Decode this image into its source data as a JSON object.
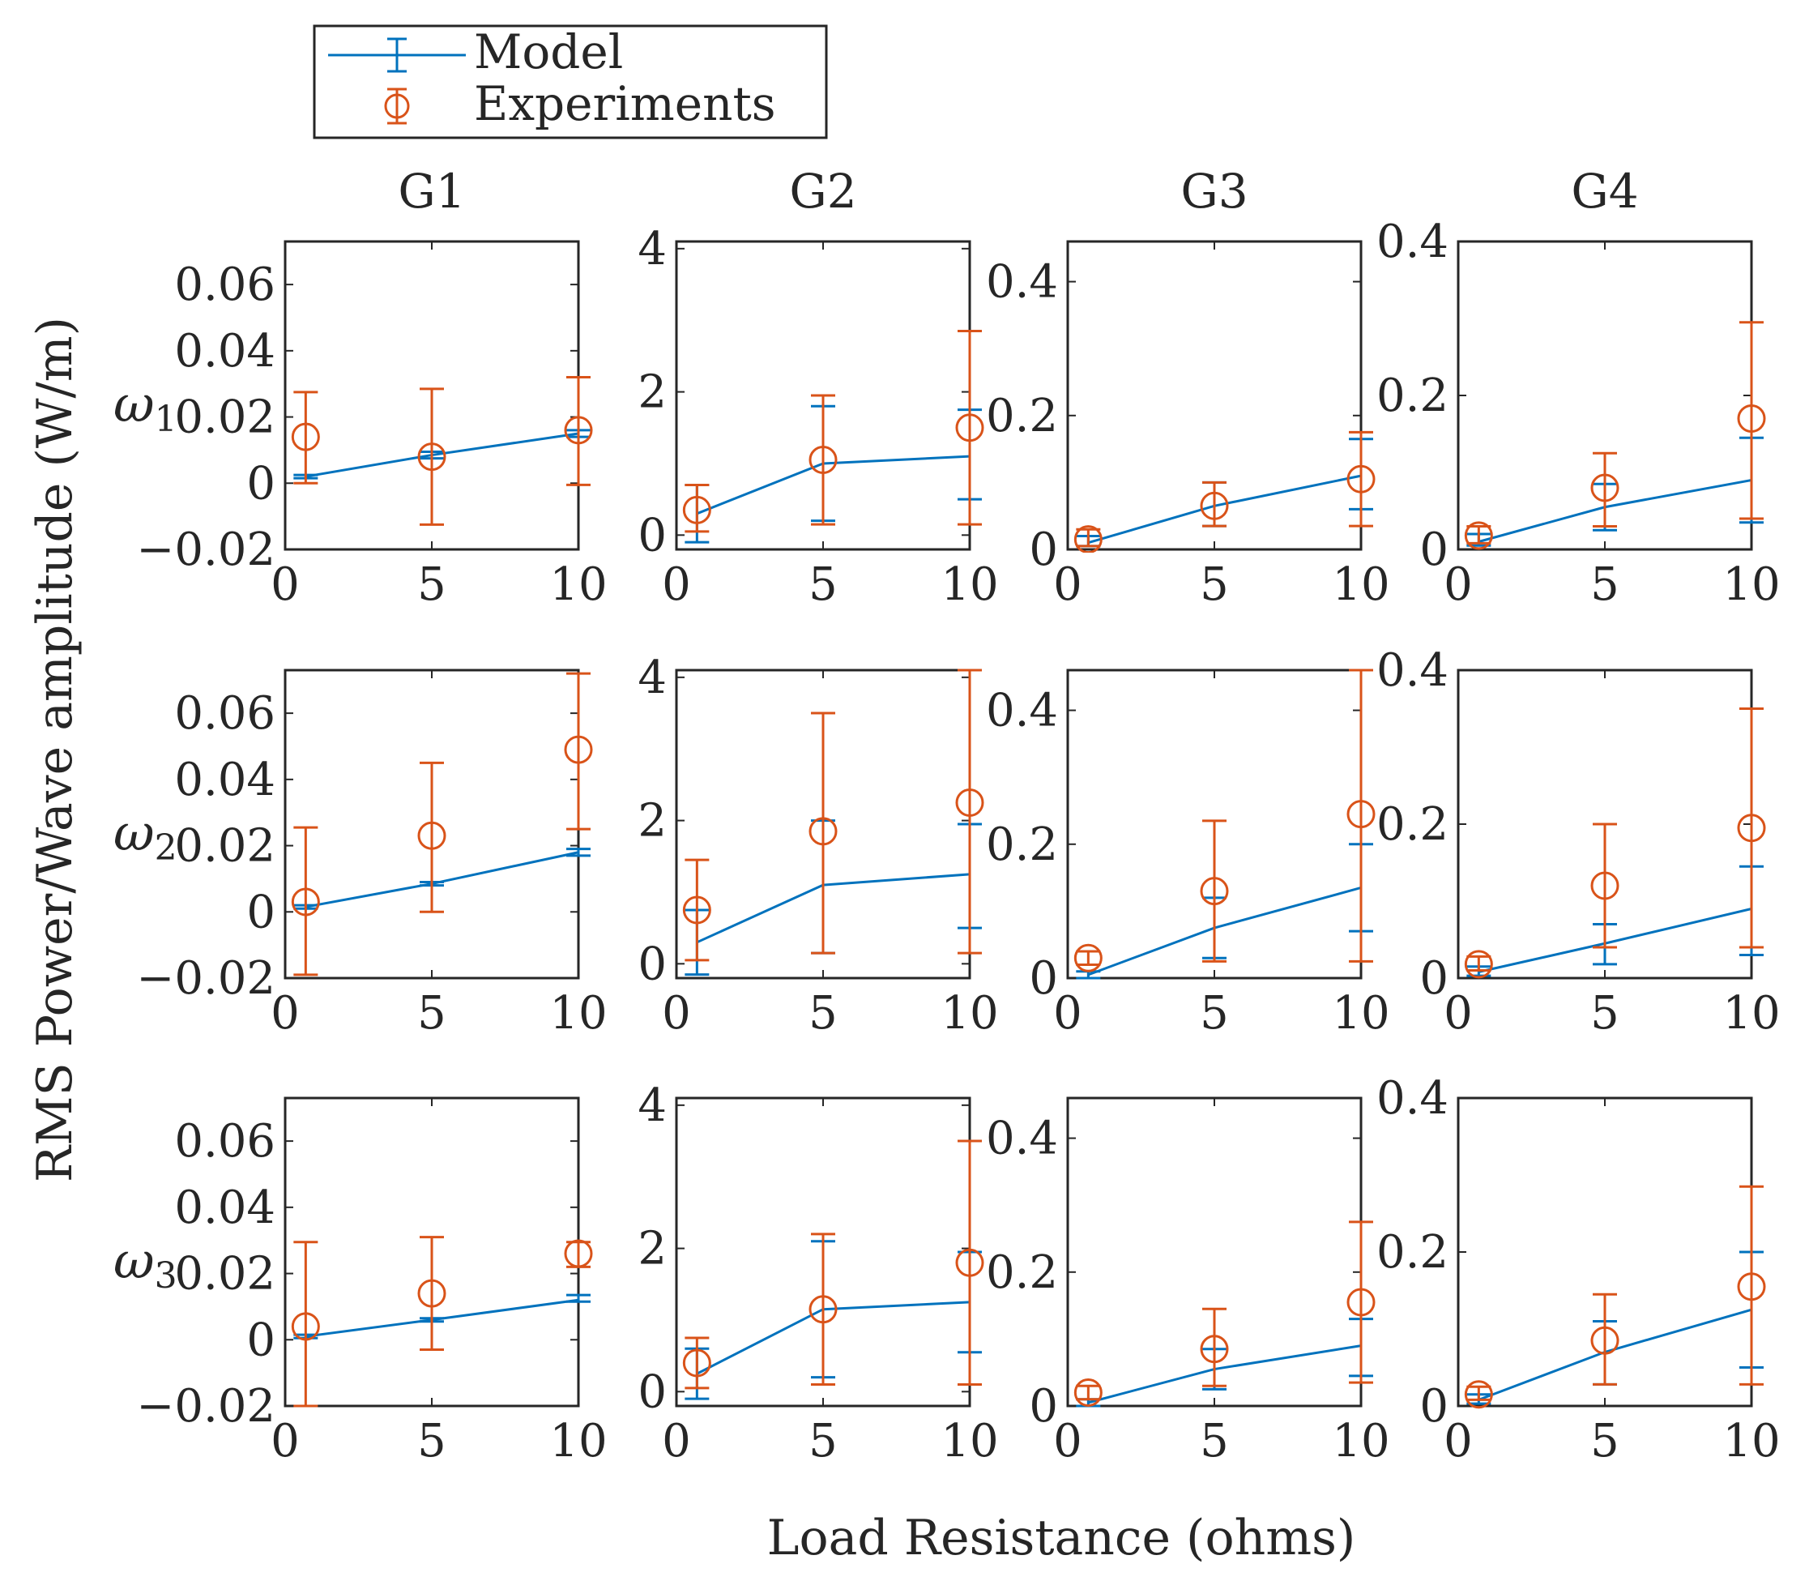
{
  "figure": {
    "ylabel": "RMS Power/Wave amplitude (W/m)",
    "xlabel": "Load Resistance (ohms)",
    "legend": {
      "placement": "top-left",
      "entries": [
        {
          "label": "Model",
          "color": "#0072BD",
          "marker": "errorbar-line"
        },
        {
          "label": "Experiments",
          "color": "#D95319",
          "marker": "circle-errorbar"
        }
      ]
    },
    "colors": {
      "model": "#0072BD",
      "experiments": "#D95319",
      "axes": "#262626"
    }
  },
  "chart_data": [
    {
      "type": "line",
      "group": "G1",
      "frequency": "ω₁",
      "col_title": "G1",
      "row_label_base": "ω",
      "row_label_sub": "1",
      "xlim": [
        0,
        10
      ],
      "ylim": [
        -0.02,
        0.073
      ],
      "xticks": [
        0,
        5,
        10
      ],
      "xtick_labels": [
        "0",
        "5",
        "10"
      ],
      "yticks": [
        -0.02,
        0,
        0.02,
        0.04,
        0.06
      ],
      "ytick_labels": [
        "−0.02",
        "0",
        "0.02",
        "0.04",
        "0.06"
      ],
      "x": [
        0.7,
        5,
        10
      ],
      "model": {
        "y": [
          0.002,
          0.0085,
          0.015
        ],
        "lower": [
          0.0015,
          0.0075,
          0.014
        ],
        "upper": [
          0.0025,
          0.0095,
          0.016
        ]
      },
      "experiments": {
        "y": [
          0.014,
          0.008,
          0.016
        ],
        "lower": [
          0,
          -0.0125,
          -0.0005
        ],
        "upper": [
          0.0275,
          0.0285,
          0.032
        ]
      }
    },
    {
      "type": "line",
      "group": "G2",
      "frequency": "ω₁",
      "col_title": "G2",
      "row_label_base": "",
      "row_label_sub": "",
      "xlim": [
        0,
        10
      ],
      "ylim": [
        -0.2,
        4.1
      ],
      "xticks": [
        0,
        5,
        10
      ],
      "xtick_labels": [
        "0",
        "5",
        "10"
      ],
      "yticks": [
        0,
        2,
        4
      ],
      "ytick_labels": [
        "0",
        "2",
        "4"
      ],
      "x": [
        0.7,
        5,
        10
      ],
      "model": {
        "y": [
          0.3,
          1.0,
          1.1
        ],
        "lower": [
          -0.1,
          0.2,
          0.5
        ],
        "upper": [
          0.7,
          1.8,
          1.75
        ]
      },
      "experiments": {
        "y": [
          0.35,
          1.05,
          1.5
        ],
        "lower": [
          0.05,
          0.15,
          0.15
        ],
        "upper": [
          0.7,
          1.95,
          2.85
        ]
      }
    },
    {
      "type": "line",
      "group": "G3",
      "frequency": "ω₁",
      "col_title": "G3",
      "row_label_base": "",
      "row_label_sub": "",
      "xlim": [
        0,
        10
      ],
      "ylim": [
        0,
        0.46
      ],
      "xticks": [
        0,
        5,
        10
      ],
      "xtick_labels": [
        "0",
        "5",
        "10"
      ],
      "yticks": [
        0,
        0.2,
        0.4
      ],
      "ytick_labels": [
        "0",
        "0.2",
        "0.4"
      ],
      "x": [
        0.7,
        5,
        10
      ],
      "model": {
        "y": [
          0.01,
          0.065,
          0.11
        ],
        "lower": [
          0.005,
          0.035,
          0.06
        ],
        "upper": [
          0.02,
          0.1,
          0.165
        ]
      },
      "experiments": {
        "y": [
          0.015,
          0.065,
          0.105
        ],
        "lower": [
          0.005,
          0.035,
          0.035
        ],
        "upper": [
          0.03,
          0.1,
          0.175
        ]
      }
    },
    {
      "type": "line",
      "group": "G4",
      "frequency": "ω₁",
      "col_title": "G4",
      "row_label_base": "",
      "row_label_sub": "",
      "xlim": [
        0,
        10
      ],
      "ylim": [
        0,
        0.4
      ],
      "xticks": [
        0,
        5,
        10
      ],
      "xtick_labels": [
        "0",
        "5",
        "10"
      ],
      "yticks": [
        0,
        0.2,
        0.4
      ],
      "ytick_labels": [
        "0",
        "0.2",
        "0.4"
      ],
      "x": [
        0.7,
        5,
        10
      ],
      "model": {
        "y": [
          0.01,
          0.055,
          0.09
        ],
        "lower": [
          0.005,
          0.025,
          0.035
        ],
        "upper": [
          0.02,
          0.085,
          0.145
        ]
      },
      "experiments": {
        "y": [
          0.018,
          0.08,
          0.17
        ],
        "lower": [
          0.008,
          0.03,
          0.04
        ],
        "upper": [
          0.03,
          0.125,
          0.295
        ]
      }
    },
    {
      "type": "line",
      "group": "G1",
      "frequency": "ω₂",
      "col_title": "",
      "row_label_base": "ω",
      "row_label_sub": "2",
      "xlim": [
        0,
        10
      ],
      "ylim": [
        -0.02,
        0.073
      ],
      "xticks": [
        0,
        5,
        10
      ],
      "xtick_labels": [
        "0",
        "5",
        "10"
      ],
      "yticks": [
        -0.02,
        0,
        0.02,
        0.04,
        0.06
      ],
      "ytick_labels": [
        "−0.02",
        "0",
        "0.02",
        "0.04",
        "0.06"
      ],
      "x": [
        0.7,
        5,
        10
      ],
      "model": {
        "y": [
          0.0015,
          0.0085,
          0.018
        ],
        "lower": [
          0.001,
          0.008,
          0.017
        ],
        "upper": [
          0.002,
          0.009,
          0.019
        ]
      },
      "experiments": {
        "y": [
          0.003,
          0.023,
          0.049
        ],
        "lower": [
          -0.019,
          0,
          0.025
        ],
        "upper": [
          0.0255,
          0.045,
          0.072
        ]
      }
    },
    {
      "type": "line",
      "group": "G2",
      "frequency": "ω₂",
      "col_title": "",
      "row_label_base": "",
      "row_label_sub": "",
      "xlim": [
        0,
        10
      ],
      "ylim": [
        -0.2,
        4.1
      ],
      "xticks": [
        0,
        5,
        10
      ],
      "xtick_labels": [
        "0",
        "5",
        "10"
      ],
      "yticks": [
        0,
        2,
        4
      ],
      "ytick_labels": [
        "0",
        "2",
        "4"
      ],
      "x": [
        0.7,
        5,
        10
      ],
      "model": {
        "y": [
          0.3,
          1.1,
          1.25
        ],
        "lower": [
          -0.15,
          0.15,
          0.5
        ],
        "upper": [
          0.75,
          2.0,
          1.95
        ]
      },
      "experiments": {
        "y": [
          0.75,
          1.85,
          2.25
        ],
        "lower": [
          0.05,
          0.15,
          0.15
        ],
        "upper": [
          1.45,
          3.5,
          4.1
        ]
      }
    },
    {
      "type": "line",
      "group": "G3",
      "frequency": "ω₂",
      "col_title": "",
      "row_label_base": "",
      "row_label_sub": "",
      "xlim": [
        0,
        10
      ],
      "ylim": [
        0,
        0.46
      ],
      "xticks": [
        0,
        5,
        10
      ],
      "xtick_labels": [
        "0",
        "5",
        "10"
      ],
      "yticks": [
        0,
        0.2,
        0.4
      ],
      "ytick_labels": [
        "0",
        "0.2",
        "0.4"
      ],
      "x": [
        0.7,
        5,
        10
      ],
      "model": {
        "y": [
          0.005,
          0.075,
          0.135
        ],
        "lower": [
          0,
          0.03,
          0.07
        ],
        "upper": [
          0.01,
          0.12,
          0.2
        ]
      },
      "experiments": {
        "y": [
          0.03,
          0.13,
          0.245
        ],
        "lower": [
          0.02,
          0.025,
          0.025
        ],
        "upper": [
          0.04,
          0.235,
          0.46
        ]
      }
    },
    {
      "type": "line",
      "group": "G4",
      "frequency": "ω₂",
      "col_title": "",
      "row_label_base": "",
      "row_label_sub": "",
      "xlim": [
        0,
        10
      ],
      "ylim": [
        0,
        0.4
      ],
      "xticks": [
        0,
        5,
        10
      ],
      "xtick_labels": [
        "0",
        "5",
        "10"
      ],
      "yticks": [
        0,
        0.2,
        0.4
      ],
      "ytick_labels": [
        "0",
        "0.2",
        "0.4"
      ],
      "x": [
        0.7,
        5,
        10
      ],
      "model": {
        "y": [
          0.008,
          0.045,
          0.09
        ],
        "lower": [
          0.003,
          0.018,
          0.03
        ],
        "upper": [
          0.015,
          0.07,
          0.145
        ]
      },
      "experiments": {
        "y": [
          0.018,
          0.12,
          0.195
        ],
        "lower": [
          0.01,
          0.04,
          0.04
        ],
        "upper": [
          0.028,
          0.2,
          0.35
        ]
      }
    },
    {
      "type": "line",
      "group": "G1",
      "frequency": "ω₃",
      "col_title": "",
      "row_label_base": "ω",
      "row_label_sub": "3",
      "xlim": [
        0,
        10
      ],
      "ylim": [
        -0.02,
        0.073
      ],
      "xticks": [
        0,
        5,
        10
      ],
      "xtick_labels": [
        "0",
        "5",
        "10"
      ],
      "yticks": [
        -0.02,
        0,
        0.02,
        0.04,
        0.06
      ],
      "ytick_labels": [
        "−0.02",
        "0",
        "0.02",
        "0.04",
        "0.06"
      ],
      "x": [
        0.7,
        5,
        10
      ],
      "model": {
        "y": [
          0.001,
          0.006,
          0.012
        ],
        "lower": [
          0.0005,
          0.0055,
          0.0115
        ],
        "upper": [
          0.0015,
          0.0065,
          0.0135
        ]
      },
      "experiments": {
        "y": [
          0.004,
          0.014,
          0.026
        ],
        "lower": [
          -0.02,
          -0.003,
          0.022
        ],
        "upper": [
          0.0295,
          0.031,
          0.0295
        ]
      }
    },
    {
      "type": "line",
      "group": "G2",
      "frequency": "ω₃",
      "col_title": "",
      "row_label_base": "",
      "row_label_sub": "",
      "xlim": [
        0,
        10
      ],
      "ylim": [
        -0.2,
        4.1
      ],
      "xticks": [
        0,
        5,
        10
      ],
      "xtick_labels": [
        "0",
        "5",
        "10"
      ],
      "yticks": [
        0,
        2,
        4
      ],
      "ytick_labels": [
        "0",
        "2",
        "4"
      ],
      "x": [
        0.7,
        5,
        10
      ],
      "model": {
        "y": [
          0.25,
          1.15,
          1.25
        ],
        "lower": [
          -0.1,
          0.2,
          0.55
        ],
        "upper": [
          0.6,
          2.1,
          1.95
        ]
      },
      "experiments": {
        "y": [
          0.4,
          1.15,
          1.8
        ],
        "lower": [
          0.05,
          0.1,
          0.1
        ],
        "upper": [
          0.75,
          2.2,
          3.5
        ]
      }
    },
    {
      "type": "line",
      "group": "G3",
      "frequency": "ω₃",
      "col_title": "",
      "row_label_base": "",
      "row_label_sub": "",
      "xlim": [
        0,
        10
      ],
      "ylim": [
        0,
        0.46
      ],
      "xticks": [
        0,
        5,
        10
      ],
      "xtick_labels": [
        "0",
        "5",
        "10"
      ],
      "yticks": [
        0,
        0.2,
        0.4
      ],
      "ytick_labels": [
        "0",
        "0.2",
        "0.4"
      ],
      "x": [
        0.7,
        5,
        10
      ],
      "model": {
        "y": [
          0.005,
          0.055,
          0.09
        ],
        "lower": [
          0,
          0.025,
          0.045
        ],
        "upper": [
          0.01,
          0.085,
          0.13
        ]
      },
      "experiments": {
        "y": [
          0.02,
          0.085,
          0.155
        ],
        "lower": [
          0.01,
          0.03,
          0.035
        ],
        "upper": [
          0.03,
          0.145,
          0.275
        ]
      }
    },
    {
      "type": "line",
      "group": "G4",
      "frequency": "ω₃",
      "col_title": "",
      "row_label_base": "",
      "row_label_sub": "",
      "xlim": [
        0,
        10
      ],
      "ylim": [
        0,
        0.4
      ],
      "xticks": [
        0,
        5,
        10
      ],
      "xtick_labels": [
        "0",
        "5",
        "10"
      ],
      "yticks": [
        0,
        0.2,
        0.4
      ],
      "ytick_labels": [
        "0",
        "0.2",
        "0.4"
      ],
      "x": [
        0.7,
        5,
        10
      ],
      "model": {
        "y": [
          0.008,
          0.07,
          0.125
        ],
        "lower": [
          0.003,
          0.028,
          0.05
        ],
        "upper": [
          0.015,
          0.11,
          0.2
        ]
      },
      "experiments": {
        "y": [
          0.015,
          0.085,
          0.155
        ],
        "lower": [
          0.008,
          0.028,
          0.028
        ],
        "upper": [
          0.025,
          0.145,
          0.285
        ]
      }
    }
  ]
}
